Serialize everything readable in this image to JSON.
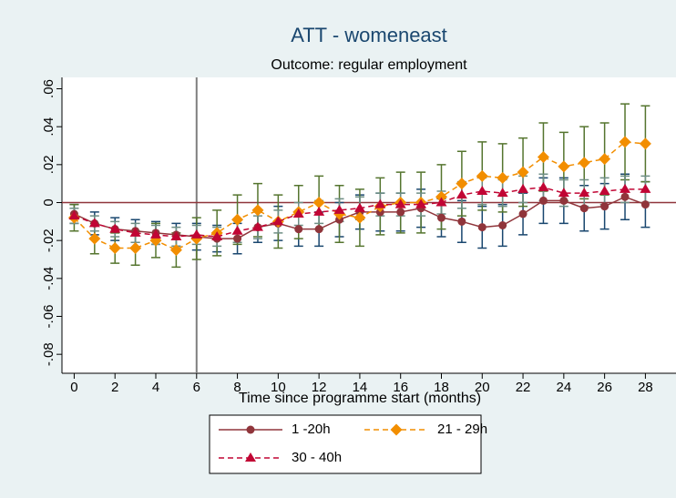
{
  "chart_data": {
    "type": "line",
    "title": "ATT - womeneast",
    "subtitle": "Outcome: regular employment",
    "x_label": "Time since programme start (months)",
    "x": [
      0,
      1,
      2,
      3,
      4,
      5,
      6,
      7,
      8,
      9,
      10,
      11,
      12,
      13,
      14,
      15,
      16,
      17,
      18,
      19,
      20,
      21,
      22,
      23,
      24,
      25,
      26,
      27,
      28
    ],
    "xlim": [
      -0.6,
      29.5
    ],
    "xticks": [
      0,
      2,
      4,
      6,
      8,
      10,
      12,
      14,
      16,
      18,
      20,
      22,
      24,
      26,
      28
    ],
    "ylim": [
      -0.09,
      0.066
    ],
    "yticks": [
      {
        "value": -0.08,
        "label": "-.08"
      },
      {
        "value": -0.06,
        "label": "-.06"
      },
      {
        "value": -0.04,
        "label": "-.04"
      },
      {
        "value": -0.02,
        "label": "-.02"
      },
      0,
      {
        "value": 0.02,
        "label": ".02"
      },
      {
        "value": 0.04,
        "label": ".04"
      },
      {
        "value": 0.06,
        "label": ".06"
      }
    ],
    "reference_lines": {
      "x": 6,
      "y": 0,
      "x_color": "#7f7f7f",
      "y_color": "#90353b"
    },
    "series": [
      {
        "name": "1 -20h",
        "color": "#90353b",
        "error_color": "#1a476f",
        "marker": "circle",
        "line_style": "solid",
        "values": [
          -0.006,
          -0.011,
          -0.014,
          -0.015,
          -0.016,
          -0.017,
          -0.018,
          -0.019,
          -0.019,
          -0.013,
          -0.011,
          -0.014,
          -0.014,
          -0.009,
          -0.005,
          -0.005,
          -0.005,
          -0.003,
          -0.008,
          -0.01,
          -0.013,
          -0.012,
          -0.006,
          0.001,
          0.001,
          -0.003,
          -0.002,
          0.003,
          -0.001
        ],
        "errors": [
          0.005,
          0.006,
          0.006,
          0.006,
          0.006,
          0.006,
          0.007,
          0.007,
          0.008,
          0.008,
          0.009,
          0.009,
          0.009,
          0.009,
          0.009,
          0.01,
          0.01,
          0.01,
          0.01,
          0.011,
          0.011,
          0.011,
          0.011,
          0.012,
          0.012,
          0.012,
          0.012,
          0.012,
          0.012
        ]
      },
      {
        "name": "21 - 29h",
        "color": "#f28e00",
        "error_color": "#55752f",
        "marker": "diamond",
        "line_style": "dashed",
        "values": [
          -0.008,
          -0.019,
          -0.024,
          -0.024,
          -0.02,
          -0.025,
          -0.019,
          -0.016,
          -0.009,
          -0.004,
          -0.01,
          -0.005,
          0.0,
          -0.006,
          -0.008,
          -0.002,
          0.0,
          0.0,
          0.003,
          0.01,
          0.014,
          0.013,
          0.016,
          0.024,
          0.019,
          0.021,
          0.023,
          0.032,
          0.031
        ],
        "errors": [
          0.007,
          0.008,
          0.008,
          0.009,
          0.009,
          0.009,
          0.011,
          0.012,
          0.013,
          0.014,
          0.014,
          0.014,
          0.014,
          0.015,
          0.015,
          0.015,
          0.016,
          0.016,
          0.017,
          0.017,
          0.018,
          0.018,
          0.018,
          0.018,
          0.018,
          0.019,
          0.019,
          0.02,
          0.02
        ]
      },
      {
        "name": "30 - 40h",
        "color": "#c10534",
        "error_color": "#6e8e84",
        "marker": "triangle",
        "line_style": "dashed",
        "values": [
          -0.007,
          -0.011,
          -0.014,
          -0.016,
          -0.017,
          -0.018,
          -0.017,
          -0.018,
          -0.015,
          -0.013,
          -0.01,
          -0.006,
          -0.005,
          -0.004,
          -0.003,
          -0.001,
          -0.001,
          -0.001,
          0.0,
          0.004,
          0.006,
          0.005,
          0.007,
          0.008,
          0.005,
          0.005,
          0.006,
          0.007,
          0.007
        ],
        "errors": [
          0.004,
          0.004,
          0.004,
          0.005,
          0.005,
          0.005,
          0.005,
          0.005,
          0.006,
          0.006,
          0.006,
          0.006,
          0.006,
          0.006,
          0.006,
          0.006,
          0.006,
          0.006,
          0.006,
          0.007,
          0.007,
          0.007,
          0.007,
          0.007,
          0.007,
          0.007,
          0.007,
          0.007,
          0.007
        ]
      }
    ]
  }
}
